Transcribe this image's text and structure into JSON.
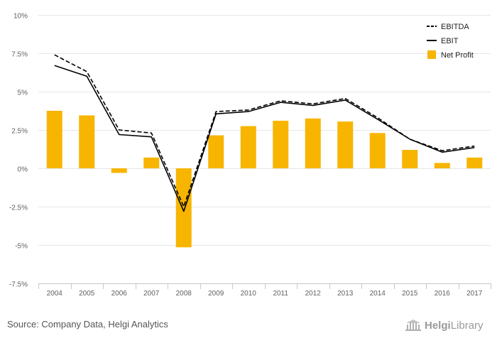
{
  "chart_data": {
    "type": "bar",
    "categories": [
      "2004",
      "2005",
      "2006",
      "2007",
      "2008",
      "2009",
      "2010",
      "2011",
      "2012",
      "2013",
      "2014",
      "2015",
      "2016",
      "2017"
    ],
    "series": [
      {
        "name": "EBITDA",
        "kind": "line",
        "style": "dashed",
        "values": [
          7.4,
          6.3,
          2.5,
          2.3,
          -2.5,
          3.7,
          3.8,
          4.4,
          4.2,
          4.55,
          3.3,
          1.9,
          1.15,
          1.45
        ]
      },
      {
        "name": "EBIT",
        "kind": "line",
        "style": "solid",
        "values": [
          6.7,
          6.0,
          2.2,
          2.05,
          -2.8,
          3.55,
          3.7,
          4.3,
          4.1,
          4.45,
          3.2,
          1.9,
          1.05,
          1.35
        ]
      },
      {
        "name": "Net Profit",
        "kind": "bar",
        "color": "#F7B500",
        "values": [
          3.75,
          3.45,
          -0.3,
          0.7,
          -5.15,
          2.15,
          2.75,
          3.1,
          3.25,
          3.05,
          2.3,
          1.2,
          0.35,
          0.7
        ]
      }
    ],
    "ylim": [
      -7.5,
      10
    ],
    "yticks": [
      "10%",
      "7.5%",
      "5%",
      "2.5%",
      "0%",
      "-2.5%",
      "-5%",
      "-7.5%"
    ],
    "ytick_values": [
      10,
      7.5,
      5,
      2.5,
      0,
      -2.5,
      -5,
      -7.5
    ],
    "grid": "horizontal",
    "legend_position": "top-right"
  },
  "source": "Source: Company Data, Helgi Analytics",
  "brand": {
    "name_bold": "Helgi",
    "name_regular": "Library",
    "icon": "library-building-icon"
  }
}
